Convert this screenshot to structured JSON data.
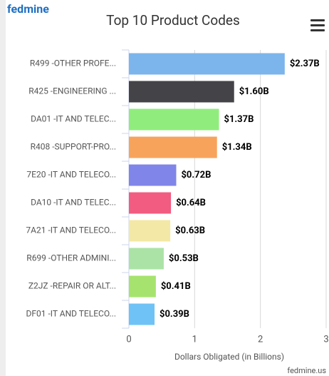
{
  "logo": "fedmine",
  "footer": "fedmine.us",
  "chart_data": {
    "type": "bar",
    "orientation": "horizontal",
    "title": "Top 10 Product Codes",
    "x_label": "Dollars Obligated (in Billions)",
    "categories": [
      "R499 -OTHER PROFE...",
      "R425 -ENGINEERING ...",
      "DA01 -IT AND TELEC...",
      "R408 -SUPPORT-PRO...",
      "7E20 -IT AND TELECO...",
      "DA10 -IT AND TELEC...",
      "7A21 -IT AND TELECO...",
      "R699 -OTHER ADMINI...",
      "Z2JZ -REPAIR OR ALT...",
      "DF01 -IT AND TELECO..."
    ],
    "values": [
      2.37,
      1.6,
      1.37,
      1.34,
      0.72,
      0.64,
      0.63,
      0.53,
      0.41,
      0.39
    ],
    "value_labels": [
      "$2.37B",
      "$1.60B",
      "$1.37B",
      "$1.34B",
      "$0.72B",
      "$0.64B",
      "$0.63B",
      "$0.53B",
      "$0.41B",
      "$0.39B"
    ],
    "colors": [
      "#7cb5ec",
      "#434348",
      "#90ed7d",
      "#f7a35c",
      "#8085e9",
      "#f15c80",
      "#f3e8a5",
      "#abe3a6",
      "#a6e36e",
      "#6fc2f5"
    ],
    "xlim": [
      0,
      3
    ],
    "xticks": [
      0,
      1,
      2,
      3
    ],
    "grid": true
  }
}
